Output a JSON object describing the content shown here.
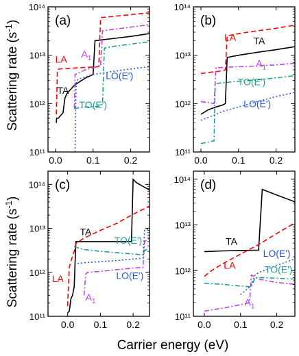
{
  "figure": {
    "ylabel": "Scattering rate (s",
    "ylabel_sup": "-1",
    "ylabel_close": ")",
    "xlabel": "Carrier energy (eV)"
  },
  "colors": {
    "TA": "#000000",
    "LA": "#ff0000",
    "A1": "#bf3ff0",
    "TO": "#1f9f8f",
    "LO": "#2a55e0"
  },
  "chart_data": [
    {
      "panel": "(a)",
      "type": "line",
      "yscale": "log",
      "xlim": [
        -0.02,
        0.25
      ],
      "ylim": [
        100000000000.0,
        100000000000000.0
      ],
      "xticks": [
        0.0,
        0.1,
        0.2
      ],
      "xticklabels": [
        "0.0",
        "0.1",
        "0.2"
      ],
      "yticks": [
        100000000000.0,
        1000000000000.0,
        10000000000000.0,
        100000000000000.0
      ],
      "yticklabels": [
        "10¹¹",
        "10¹²",
        "10¹³",
        "10¹⁴"
      ],
      "series": [
        {
          "name": "TA",
          "style": "solid",
          "x": [
            0.002,
            0.003,
            0.008,
            0.012,
            0.02,
            0.025,
            0.03,
            0.05,
            0.08,
            0.1,
            0.105,
            0.15,
            0.2,
            0.25
          ],
          "y": [
            400000000000.0,
            500000000000.0,
            500000000000.0,
            550000000000.0,
            650000000000.0,
            1300000000000.0,
            1600000000000.0,
            2400000000000.0,
            3400000000000.0,
            4000000000000.0,
            20000000000000.0,
            22000000000000.0,
            24500000000000.0,
            28000000000000.0
          ]
        },
        {
          "name": "LA",
          "style": "dashed",
          "x": [
            0.002,
            0.005,
            0.01,
            0.03,
            0.06,
            0.1,
            0.115,
            0.12,
            0.15,
            0.2,
            0.25
          ],
          "y": [
            600000000000.0,
            5000000000000.0,
            5200000000000.0,
            5300000000000.0,
            5500000000000.0,
            5700000000000.0,
            5800000000000.0,
            60000000000000.0,
            63000000000000.0,
            69000000000000.0,
            75000000000000.0
          ]
        },
        {
          "name": "A₁",
          "style": "dashdot",
          "x": [
            0.05,
            0.052,
            0.08,
            0.1,
            0.12,
            0.125,
            0.15,
            0.2,
            0.25
          ],
          "y": [
            800000000000.0,
            4000000000000.0,
            5000000000000.0,
            5500000000000.0,
            6000000000000.0,
            32000000000000.0,
            34000000000000.0,
            38000000000000.0,
            43000000000000.0
          ]
        },
        {
          "name": "TO(E')",
          "style": "dashdot",
          "x": [
            0.05,
            0.052,
            0.08,
            0.1,
            0.12,
            0.125,
            0.13,
            0.15,
            0.2,
            0.25
          ],
          "y": [
            800000000000.0,
            800000000000.0,
            850000000000.0,
            850000000000.0,
            900000000000.0,
            1000000000000.0,
            14000000000000.0,
            15000000000000.0,
            17000000000000.0,
            19000000000000.0
          ]
        },
        {
          "name": "LO(E')",
          "style": "dotted",
          "x": [
            0.052,
            0.053,
            0.055,
            0.06,
            0.1,
            0.15,
            0.2,
            0.25
          ],
          "y": [
            100000000000.0,
            500000000000.0,
            2800000000000.0,
            3200000000000.0,
            4000000000000.0,
            4600000000000.0,
            5200000000000.0,
            5800000000000.0
          ]
        }
      ],
      "labels": [
        {
          "text": "TA",
          "series": "TA",
          "x": 0.02,
          "y": 1600000000000.0
        },
        {
          "text": "LA",
          "series": "LA",
          "x": 0.015,
          "y": 7000000000000.0
        },
        {
          "text": "A",
          "sub": "1",
          "series": "A₁",
          "x": 0.082,
          "y": 9000000000000.0
        },
        {
          "text": "LO(E')",
          "series": "LO(E')",
          "x": 0.17,
          "y": 3200000000000.0
        },
        {
          "text": "TO(E')",
          "series": "TO(E')",
          "x": 0.1,
          "y": 800000000000.0
        }
      ]
    },
    {
      "panel": "(b)",
      "type": "line",
      "yscale": "log",
      "xlim": [
        -0.02,
        0.25
      ],
      "ylim": [
        100000000000.0,
        100000000000000.0
      ],
      "xticks": [
        0.0,
        0.1,
        0.2
      ],
      "xticklabels": [
        "0.0",
        "0.1",
        "0.2"
      ],
      "yticks": [
        100000000000.0,
        1000000000000.0,
        10000000000000.0,
        100000000000000.0
      ],
      "yticklabels": [
        "10¹¹",
        "10¹²",
        "10¹³",
        "10¹⁴"
      ],
      "series": [
        {
          "name": "TA",
          "style": "solid",
          "x": [
            0.0,
            0.02,
            0.04,
            0.06,
            0.065,
            0.07,
            0.1,
            0.15,
            0.2,
            0.25
          ],
          "y": [
            600000000000.0,
            750000000000.0,
            850000000000.0,
            950000000000.0,
            1000000000000.0,
            9000000000000.0,
            10000000000000.0,
            11500000000000.0,
            13000000000000.0,
            15000000000000.0
          ]
        },
        {
          "name": "LA",
          "style": "dashed",
          "x": [
            0.0,
            0.02,
            0.04,
            0.06,
            0.065,
            0.07,
            0.1,
            0.15,
            0.2,
            0.25
          ],
          "y": [
            4200000000000.0,
            4400000000000.0,
            4600000000000.0,
            4800000000000.0,
            5000000000000.0,
            25000000000000.0,
            28000000000000.0,
            32000000000000.0,
            36000000000000.0,
            42000000000000.0
          ]
        },
        {
          "name": "A₁",
          "style": "dashdot",
          "x": [
            0.0,
            0.02,
            0.035,
            0.04,
            0.06,
            0.1,
            0.15,
            0.2,
            0.25
          ],
          "y": [
            1100000000000.0,
            1050000000000.0,
            1000000000000.0,
            5500000000000.0,
            5600000000000.0,
            5800000000000.0,
            6000000000000.0,
            6300000000000.0,
            6800000000000.0
          ]
        },
        {
          "name": "TO(E')",
          "style": "dashdot",
          "x": [
            0.0,
            0.02,
            0.035,
            0.038,
            0.06,
            0.1,
            0.15,
            0.2,
            0.25
          ],
          "y": [
            150000000000.0,
            160000000000.0,
            170000000000.0,
            2600000000000.0,
            2700000000000.0,
            2900000000000.0,
            3100000000000.0,
            3400000000000.0,
            3800000000000.0
          ]
        },
        {
          "name": "LO(E')",
          "style": "dotted",
          "x": [
            0.0,
            0.02,
            0.04,
            0.06,
            0.1,
            0.15,
            0.2,
            0.25
          ],
          "y": [
            450000000000.0,
            520000000000.0,
            600000000000.0,
            700000000000.0,
            850000000000.0,
            1100000000000.0,
            1400000000000.0,
            1700000000000.0
          ]
        }
      ],
      "labels": [
        {
          "text": "LA",
          "series": "LA",
          "x": 0.078,
          "y": 20000000000000.0
        },
        {
          "text": "TA",
          "series": "TA",
          "x": 0.155,
          "y": 17000000000000.0
        },
        {
          "text": "A",
          "sub": "1",
          "series": "A₁",
          "x": 0.16,
          "y": 5800000000000.0
        },
        {
          "text": "TO(E')",
          "series": "TO(E')",
          "x": 0.135,
          "y": 2400000000000.0
        },
        {
          "text": "LO(E')",
          "series": "LO(E')",
          "x": 0.15,
          "y": 850000000000.0
        }
      ]
    },
    {
      "panel": "(c)",
      "type": "line",
      "yscale": "log",
      "xlim": [
        -0.06,
        0.25
      ],
      "ylim": [
        100000000000.0,
        200000000000000.0
      ],
      "xticks": [
        0.0,
        0.1,
        0.2
      ],
      "xticklabels": [
        "0.0",
        "0.1",
        "0.2"
      ],
      "yticks": [
        100000000000.0,
        1000000000000.0,
        10000000000000.0,
        100000000000000.0
      ],
      "yticklabels": [
        "10¹¹",
        "10¹²",
        "10¹³",
        "10¹⁴"
      ],
      "series": [
        {
          "name": "TA",
          "style": "solid",
          "x": [
            0.0,
            0.005,
            0.01,
            0.015,
            0.02,
            0.025,
            0.1,
            0.15,
            0.195,
            0.2,
            0.21,
            0.23,
            0.25
          ],
          "y": [
            120000000000.0,
            130000000000.0,
            250000000000.0,
            300000000000.0,
            470000000000.0,
            5000000000000.0,
            5000000000000.0,
            5000000000000.0,
            5000000000000.0,
            130000000000000.0,
            110000000000000.0,
            90000000000000.0,
            75000000000000.0
          ]
        },
        {
          "name": "LA",
          "style": "dashed",
          "x": [
            0.0,
            0.005,
            0.012,
            0.02,
            0.025,
            0.05,
            0.1,
            0.15,
            0.2,
            0.25
          ],
          "y": [
            170000000000.0,
            1300000000000.0,
            2000000000000.0,
            3000000000000.0,
            4500000000000.0,
            6000000000000.0,
            9000000000000.0,
            13000000000000.0,
            21000000000000.0,
            32000000000000.0
          ]
        },
        {
          "name": "A₁",
          "style": "dashdot",
          "x": [
            0.05,
            0.055,
            0.06,
            0.1,
            0.15,
            0.2,
            0.23,
            0.235,
            0.25
          ],
          "y": [
            300000000000.0,
            900000000000.0,
            1000000000000.0,
            1050000000000.0,
            1150000000000.0,
            1250000000000.0,
            1300000000000.0,
            5000000000000.0,
            6000000000000.0
          ]
        },
        {
          "name": "TO(E')",
          "style": "dashdot",
          "x": [
            0.02,
            0.05,
            0.1,
            0.15,
            0.2,
            0.23,
            0.235,
            0.25
          ],
          "y": [
            3800000000000.0,
            3300000000000.0,
            3000000000000.0,
            2800000000000.0,
            2600000000000.0,
            2500000000000.0,
            3200000000000.0,
            3300000000000.0
          ]
        },
        {
          "name": "LO(E')",
          "style": "dotted",
          "x": [
            0.03,
            0.05,
            0.1,
            0.15,
            0.2,
            0.23,
            0.235,
            0.25
          ],
          "y": [
            1600000000000.0,
            1650000000000.0,
            1750000000000.0,
            1850000000000.0,
            2000000000000.0,
            2100000000000.0,
            9000000000000.0,
            10000000000000.0
          ]
        }
      ],
      "labels": [
        {
          "text": "TA",
          "series": "TA",
          "x": 0.055,
          "y": 7000000000000.0
        },
        {
          "text": "TO(E')",
          "series": "TO(E')",
          "x": 0.185,
          "y": 4500000000000.0
        },
        {
          "text": "LA",
          "series": "LA",
          "x": -0.03,
          "y": 600000000000.0
        },
        {
          "text": "LO(E')",
          "series": "LO(E')",
          "x": 0.19,
          "y": 700000000000.0
        },
        {
          "text": "A",
          "sub": "1",
          "series": "A₁",
          "x": 0.07,
          "y": 230000000000.0
        }
      ]
    },
    {
      "panel": "(d)",
      "type": "line",
      "yscale": "log",
      "xlim": [
        -0.03,
        0.25
      ],
      "ylim": [
        100000000000.0,
        150000000000000.0
      ],
      "xticks": [
        0.0,
        0.1,
        0.2
      ],
      "xticklabels": [
        "0.0",
        "0.1",
        "0.2"
      ],
      "yticks": [
        100000000000.0,
        1000000000000.0,
        10000000000000.0,
        100000000000000.0
      ],
      "yticklabels": [
        "10¹¹",
        "10¹²",
        "10¹³",
        "10¹⁴"
      ],
      "series": [
        {
          "name": "TA",
          "style": "solid",
          "x": [
            0.0,
            0.05,
            0.1,
            0.15,
            0.16,
            0.2,
            0.25
          ],
          "y": [
            2600000000000.0,
            2700000000000.0,
            2750000000000.0,
            2800000000000.0,
            60000000000000.0,
            45000000000000.0,
            32000000000000.0
          ]
        },
        {
          "name": "LA",
          "style": "dashed",
          "x": [
            0.0,
            0.02,
            0.05,
            0.1,
            0.15,
            0.2,
            0.25
          ],
          "y": [
            750000000000.0,
            1000000000000.0,
            1400000000000.0,
            2300000000000.0,
            3700000000000.0,
            6500000000000.0,
            11000000000000.0
          ]
        },
        {
          "name": "A₁",
          "style": "dashdot",
          "x": [
            0.0,
            0.05,
            0.1,
            0.125,
            0.13,
            0.15,
            0.2,
            0.25
          ],
          "y": [
            130000000000.0,
            150000000000.0,
            180000000000.0,
            200000000000.0,
            800000000000.0,
            650000000000.0,
            550000000000.0,
            500000000000.0
          ]
        },
        {
          "name": "TO(E')",
          "style": "dashdot",
          "x": [
            0.0,
            0.05,
            0.1,
            0.13,
            0.14,
            0.17,
            0.2,
            0.25
          ],
          "y": [
            530000000000.0,
            500000000000.0,
            460000000000.0,
            440000000000.0,
            700000000000.0,
            700000000000.0,
            680000000000.0,
            650000000000.0
          ]
        },
        {
          "name": "LO(E')",
          "style": "dotted",
          "x": [
            0.1,
            0.12,
            0.13,
            0.14,
            0.15,
            0.2,
            0.25
          ],
          "y": [
            300000000000.0,
            400000000000.0,
            500000000000.0,
            800000000000.0,
            900000000000.0,
            1300000000000.0,
            1800000000000.0
          ]
        }
      ],
      "labels": [
        {
          "text": "TA",
          "series": "TA",
          "x": 0.075,
          "y": 3700000000000.0
        },
        {
          "text": "LO(E')",
          "series": "LO(E')",
          "x": 0.2,
          "y": 2000000000000.0
        },
        {
          "text": "LA",
          "series": "LA",
          "x": 0.07,
          "y": 1100000000000.0
        },
        {
          "text": "TO(E')",
          "series": "TO(E')",
          "x": 0.205,
          "y": 900000000000.0
        },
        {
          "text": "A",
          "sub": "1",
          "series": "A₁",
          "x": 0.125,
          "y": 170000000000.0
        }
      ]
    }
  ]
}
